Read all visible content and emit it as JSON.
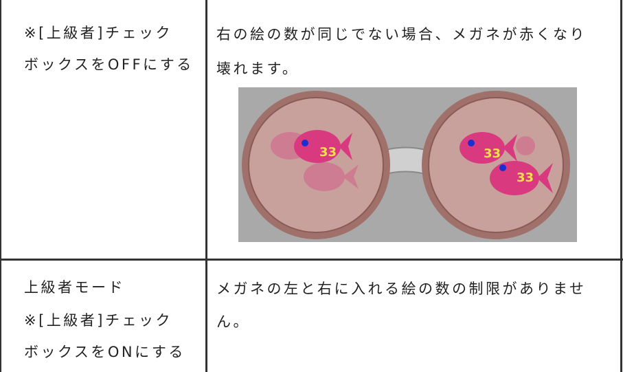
{
  "table": {
    "rows": [
      {
        "left": [
          "※[上級者]チェック",
          "ボックスをOFFにする"
        ],
        "right": [
          "右の絵の数が同じでない場合、メガネが赤くなり",
          "壊れます。"
        ]
      },
      {
        "left": [
          "上級者モード",
          "※[上級者]チェック",
          "ボックスをONにする"
        ],
        "right": [
          "メガネの左と右に入れる絵の数の制限がありませ",
          "ん。"
        ]
      }
    ]
  }
}
